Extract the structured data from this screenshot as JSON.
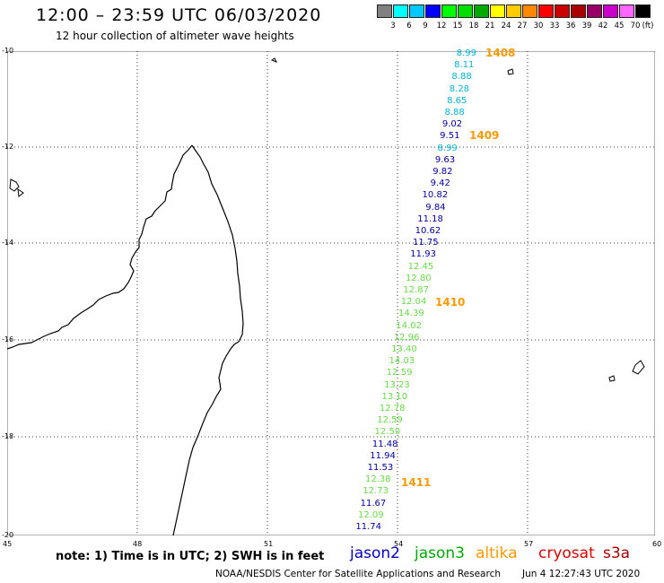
{
  "header": {
    "title": "12:00 – 23:59 UTC 06/03/2020",
    "subtitle": "12 hour collection of altimeter wave heights"
  },
  "colorbar": {
    "colors": [
      "#808080",
      "#00ffff",
      "#00c8ff",
      "#0000ff",
      "#00ff00",
      "#00dd00",
      "#00aa00",
      "#ffff00",
      "#ffcc00",
      "#ff8800",
      "#ff0000",
      "#cc0000",
      "#aa0000",
      "#990066",
      "#cc00cc",
      "#ff66ff",
      "#000000"
    ],
    "labels": [
      "3",
      "6",
      "9",
      "12",
      "15",
      "18",
      "21",
      "24",
      "27",
      "30",
      "33",
      "36",
      "39",
      "42",
      "45",
      "70"
    ],
    "unit": "(ft)"
  },
  "axes": {
    "lat_labels": [
      "-10",
      "-12",
      "-14",
      "-16",
      "-18",
      "-20"
    ],
    "lon_labels": [
      "45",
      "48",
      "51",
      "54",
      "57",
      "60"
    ]
  },
  "passes": [
    {
      "label": "1408",
      "color": "#ff9900"
    },
    {
      "label": "1409",
      "color": "#ff9900"
    },
    {
      "label": "1410",
      "color": "#ff9900"
    },
    {
      "label": "1411",
      "color": "#ff9900"
    }
  ],
  "wave_heights": [
    {
      "value": "8.99",
      "color": "#00b4d8"
    },
    {
      "value": "8.11",
      "color": "#00b4d8"
    },
    {
      "value": "8.88",
      "color": "#00b4d8"
    },
    {
      "value": "8.28",
      "color": "#00b4d8"
    },
    {
      "value": "8.65",
      "color": "#00b4d8"
    },
    {
      "value": "8.88",
      "color": "#00b4d8"
    },
    {
      "value": "9.02",
      "color": "#0000aa"
    },
    {
      "value": "9.51",
      "color": "#0000aa"
    },
    {
      "value": "8.99",
      "color": "#00b4d8"
    },
    {
      "value": "9.63",
      "color": "#0000aa"
    },
    {
      "value": "9.82",
      "color": "#0000aa"
    },
    {
      "value": "9.42",
      "color": "#0000aa"
    },
    {
      "value": "10.82",
      "color": "#0000aa"
    },
    {
      "value": "9.84",
      "color": "#0000aa"
    },
    {
      "value": "11.18",
      "color": "#0000aa"
    },
    {
      "value": "10.62",
      "color": "#0000aa"
    },
    {
      "value": "11.75",
      "color": "#0000aa"
    },
    {
      "value": "11.93",
      "color": "#0000aa"
    },
    {
      "value": "12.45",
      "color": "#66dd44"
    },
    {
      "value": "12.80",
      "color": "#66dd44"
    },
    {
      "value": "12.87",
      "color": "#66dd44"
    },
    {
      "value": "12.04",
      "color": "#66dd44"
    },
    {
      "value": "14.39",
      "color": "#66dd44"
    },
    {
      "value": "14.02",
      "color": "#66dd44"
    },
    {
      "value": "12.96",
      "color": "#66dd44"
    },
    {
      "value": "13.40",
      "color": "#66dd44"
    },
    {
      "value": "14.03",
      "color": "#66dd44"
    },
    {
      "value": "12.59",
      "color": "#66dd44"
    },
    {
      "value": "13.23",
      "color": "#66dd44"
    },
    {
      "value": "13.10",
      "color": "#66dd44"
    },
    {
      "value": "12.78",
      "color": "#66dd44"
    },
    {
      "value": "12.59",
      "color": "#66dd44"
    },
    {
      "value": "12.50",
      "color": "#66dd44"
    },
    {
      "value": "11.48",
      "color": "#0000aa"
    },
    {
      "value": "11.94",
      "color": "#0000aa"
    },
    {
      "value": "11.53",
      "color": "#0000aa"
    },
    {
      "value": "12.38",
      "color": "#66dd44"
    },
    {
      "value": "12.73",
      "color": "#66dd44"
    },
    {
      "value": "11.67",
      "color": "#0000aa"
    },
    {
      "value": "12.09",
      "color": "#66dd44"
    },
    {
      "value": "11.74",
      "color": "#0000aa"
    }
  ],
  "footer": {
    "note": "note:  1) Time is in UTC;  2) SWH is in feet",
    "satellites": [
      {
        "name": "jason2",
        "color": "#0000cc"
      },
      {
        "name": "jason3",
        "color": "#00aa00"
      },
      {
        "name": "altika",
        "color": "#ff9900"
      },
      {
        "name": "cryosat",
        "color": "#dd0000"
      },
      {
        "name": "s3a",
        "color": "#aa0000"
      }
    ],
    "credit": "NOAA/NESDIS Center for Satellite Applications and Research",
    "timestamp": "Jun  4 12:27:43 UTC 2020"
  }
}
